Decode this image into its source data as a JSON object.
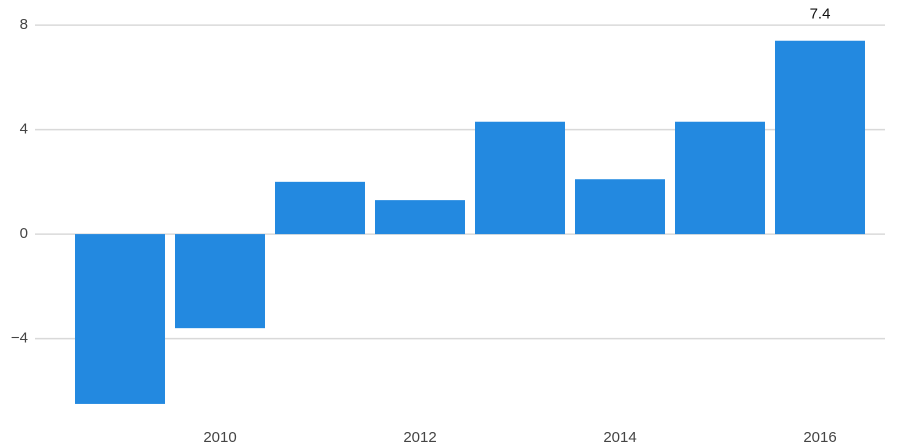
{
  "chart_data": {
    "type": "bar",
    "categories": [
      null,
      "2010",
      null,
      "2012",
      null,
      "2014",
      null,
      "2016"
    ],
    "values": [
      -6.5,
      -3.6,
      2.0,
      1.3,
      4.3,
      2.1,
      4.3,
      7.4
    ],
    "color": "#2389e0",
    "ylim": [
      -7,
      8.5
    ],
    "yticks": [
      {
        "value": -4,
        "label": "−4"
      },
      0,
      4,
      8
    ],
    "grid": true,
    "data_labels": "last"
  }
}
